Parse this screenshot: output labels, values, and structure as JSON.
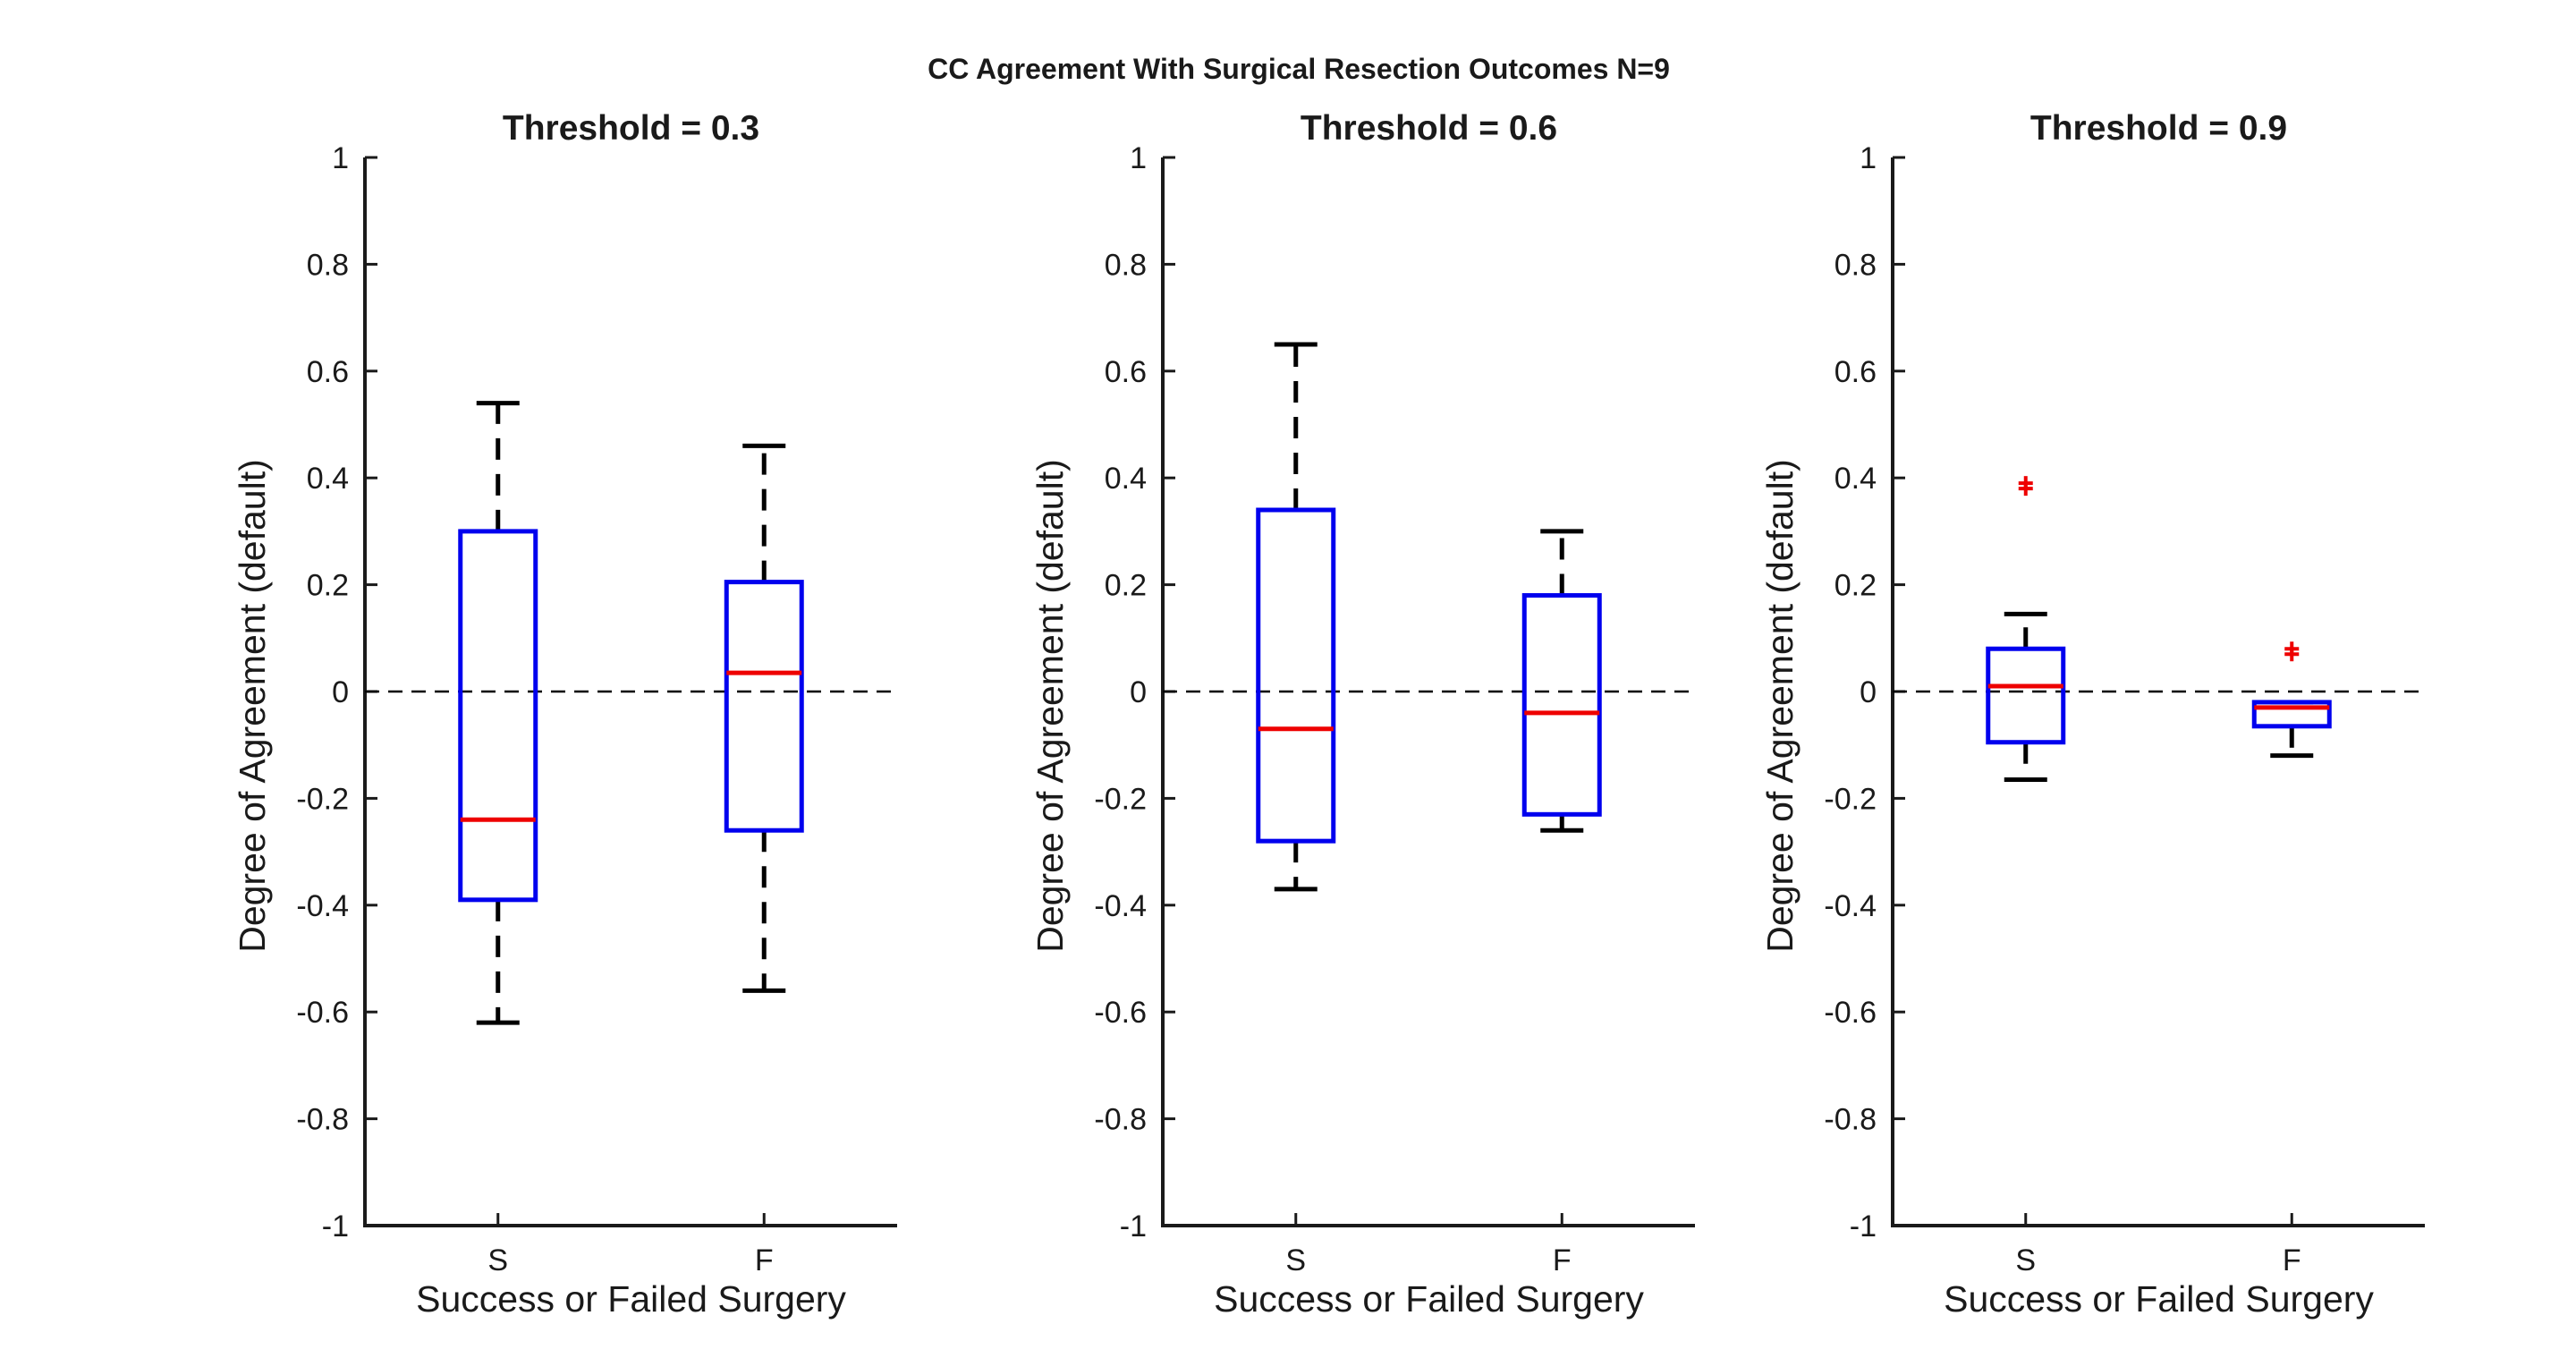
{
  "figure": {
    "title": "CC Agreement With Surgical Resection Outcomes N=9"
  },
  "chart_data": [
    {
      "type": "box",
      "title": "Threshold = 0.3",
      "xlabel": "Success or Failed Surgery",
      "ylabel": "Degree of Agreement (default)",
      "categories": [
        "S",
        "F"
      ],
      "ylim": [
        -1,
        1
      ],
      "yticks": [
        -1,
        -0.8,
        -0.6,
        -0.4,
        -0.2,
        0,
        0.2,
        0.4,
        0.6,
        0.8,
        1
      ],
      "ytick_labels": [
        "-1",
        "-0.8",
        "-0.6",
        "-0.4",
        "-0.2",
        "0",
        "0.2",
        "0.4",
        "0.6",
        "0.8",
        "1"
      ],
      "reference_line": 0,
      "boxes": [
        {
          "category": "S",
          "whisker_low": -0.62,
          "q1": -0.39,
          "median": -0.24,
          "q3": 0.3,
          "whisker_high": 0.54,
          "outliers": []
        },
        {
          "category": "F",
          "whisker_low": -0.56,
          "q1": -0.26,
          "median": 0.035,
          "q3": 0.205,
          "whisker_high": 0.46,
          "outliers": []
        }
      ]
    },
    {
      "type": "box",
      "title": "Threshold = 0.6",
      "xlabel": "Success or Failed Surgery",
      "ylabel": "Degree of Agreement (default)",
      "categories": [
        "S",
        "F"
      ],
      "ylim": [
        -1,
        1
      ],
      "yticks": [
        -1,
        -0.8,
        -0.6,
        -0.4,
        -0.2,
        0,
        0.2,
        0.4,
        0.6,
        0.8,
        1
      ],
      "ytick_labels": [
        "-1",
        "-0.8",
        "-0.6",
        "-0.4",
        "-0.2",
        "0",
        "0.2",
        "0.4",
        "0.6",
        "0.8",
        "1"
      ],
      "reference_line": 0,
      "boxes": [
        {
          "category": "S",
          "whisker_low": -0.37,
          "q1": -0.28,
          "median": -0.07,
          "q3": 0.34,
          "whisker_high": 0.65,
          "outliers": []
        },
        {
          "category": "F",
          "whisker_low": -0.26,
          "q1": -0.23,
          "median": -0.04,
          "q3": 0.18,
          "whisker_high": 0.3,
          "outliers": []
        }
      ]
    },
    {
      "type": "box",
      "title": "Threshold = 0.9",
      "xlabel": "Success or Failed Surgery",
      "ylabel": "Degree of Agreement (default)",
      "categories": [
        "S",
        "F"
      ],
      "ylim": [
        -1,
        1
      ],
      "yticks": [
        -1,
        -0.8,
        -0.6,
        -0.4,
        -0.2,
        0,
        0.2,
        0.4,
        0.6,
        0.8,
        1
      ],
      "ytick_labels": [
        "-1",
        "-0.8",
        "-0.6",
        "-0.4",
        "-0.2",
        "0",
        "0.2",
        "0.4",
        "0.6",
        "0.8",
        "1"
      ],
      "reference_line": 0,
      "boxes": [
        {
          "category": "S",
          "whisker_low": -0.165,
          "q1": -0.095,
          "median": 0.01,
          "q3": 0.08,
          "whisker_high": 0.145,
          "outliers": [
            0.39,
            0.38
          ]
        },
        {
          "category": "F",
          "whisker_low": -0.12,
          "q1": -0.065,
          "median": -0.03,
          "q3": -0.02,
          "whisker_high": -0.02,
          "outliers": [
            0.08,
            0.07
          ]
        }
      ]
    }
  ],
  "colors": {
    "axis": "#1a1a1a",
    "box": "#0000ee",
    "median": "#ee0000",
    "whisker": "#000000",
    "outlier": "#ee0000",
    "reference": "#000000"
  }
}
